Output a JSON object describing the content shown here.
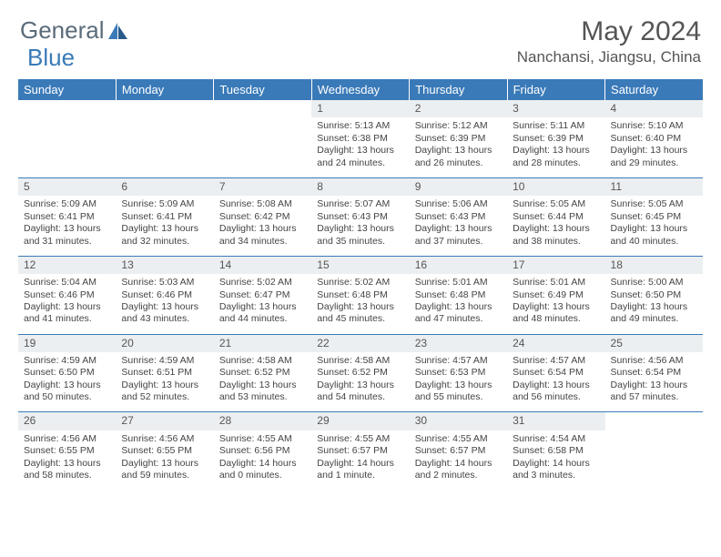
{
  "logo": {
    "part1": "General",
    "part2": "Blue"
  },
  "title": "May 2024",
  "location": "Nanchansi, Jiangsu, China",
  "colors": {
    "header_bg": "#3a7ab8",
    "header_text": "#ffffff",
    "daynum_bg": "#eceff1",
    "border": "#3a7ab8",
    "body_text": "#444444",
    "title_text": "#555555"
  },
  "weekdays": [
    "Sunday",
    "Monday",
    "Tuesday",
    "Wednesday",
    "Thursday",
    "Friday",
    "Saturday"
  ],
  "weeks": [
    [
      null,
      null,
      null,
      {
        "n": "1",
        "sr": "5:13 AM",
        "ss": "6:38 PM",
        "dl": "13 hours and 24 minutes."
      },
      {
        "n": "2",
        "sr": "5:12 AM",
        "ss": "6:39 PM",
        "dl": "13 hours and 26 minutes."
      },
      {
        "n": "3",
        "sr": "5:11 AM",
        "ss": "6:39 PM",
        "dl": "13 hours and 28 minutes."
      },
      {
        "n": "4",
        "sr": "5:10 AM",
        "ss": "6:40 PM",
        "dl": "13 hours and 29 minutes."
      }
    ],
    [
      {
        "n": "5",
        "sr": "5:09 AM",
        "ss": "6:41 PM",
        "dl": "13 hours and 31 minutes."
      },
      {
        "n": "6",
        "sr": "5:09 AM",
        "ss": "6:41 PM",
        "dl": "13 hours and 32 minutes."
      },
      {
        "n": "7",
        "sr": "5:08 AM",
        "ss": "6:42 PM",
        "dl": "13 hours and 34 minutes."
      },
      {
        "n": "8",
        "sr": "5:07 AM",
        "ss": "6:43 PM",
        "dl": "13 hours and 35 minutes."
      },
      {
        "n": "9",
        "sr": "5:06 AM",
        "ss": "6:43 PM",
        "dl": "13 hours and 37 minutes."
      },
      {
        "n": "10",
        "sr": "5:05 AM",
        "ss": "6:44 PM",
        "dl": "13 hours and 38 minutes."
      },
      {
        "n": "11",
        "sr": "5:05 AM",
        "ss": "6:45 PM",
        "dl": "13 hours and 40 minutes."
      }
    ],
    [
      {
        "n": "12",
        "sr": "5:04 AM",
        "ss": "6:46 PM",
        "dl": "13 hours and 41 minutes."
      },
      {
        "n": "13",
        "sr": "5:03 AM",
        "ss": "6:46 PM",
        "dl": "13 hours and 43 minutes."
      },
      {
        "n": "14",
        "sr": "5:02 AM",
        "ss": "6:47 PM",
        "dl": "13 hours and 44 minutes."
      },
      {
        "n": "15",
        "sr": "5:02 AM",
        "ss": "6:48 PM",
        "dl": "13 hours and 45 minutes."
      },
      {
        "n": "16",
        "sr": "5:01 AM",
        "ss": "6:48 PM",
        "dl": "13 hours and 47 minutes."
      },
      {
        "n": "17",
        "sr": "5:01 AM",
        "ss": "6:49 PM",
        "dl": "13 hours and 48 minutes."
      },
      {
        "n": "18",
        "sr": "5:00 AM",
        "ss": "6:50 PM",
        "dl": "13 hours and 49 minutes."
      }
    ],
    [
      {
        "n": "19",
        "sr": "4:59 AM",
        "ss": "6:50 PM",
        "dl": "13 hours and 50 minutes."
      },
      {
        "n": "20",
        "sr": "4:59 AM",
        "ss": "6:51 PM",
        "dl": "13 hours and 52 minutes."
      },
      {
        "n": "21",
        "sr": "4:58 AM",
        "ss": "6:52 PM",
        "dl": "13 hours and 53 minutes."
      },
      {
        "n": "22",
        "sr": "4:58 AM",
        "ss": "6:52 PM",
        "dl": "13 hours and 54 minutes."
      },
      {
        "n": "23",
        "sr": "4:57 AM",
        "ss": "6:53 PM",
        "dl": "13 hours and 55 minutes."
      },
      {
        "n": "24",
        "sr": "4:57 AM",
        "ss": "6:54 PM",
        "dl": "13 hours and 56 minutes."
      },
      {
        "n": "25",
        "sr": "4:56 AM",
        "ss": "6:54 PM",
        "dl": "13 hours and 57 minutes."
      }
    ],
    [
      {
        "n": "26",
        "sr": "4:56 AM",
        "ss": "6:55 PM",
        "dl": "13 hours and 58 minutes."
      },
      {
        "n": "27",
        "sr": "4:56 AM",
        "ss": "6:55 PM",
        "dl": "13 hours and 59 minutes."
      },
      {
        "n": "28",
        "sr": "4:55 AM",
        "ss": "6:56 PM",
        "dl": "14 hours and 0 minutes."
      },
      {
        "n": "29",
        "sr": "4:55 AM",
        "ss": "6:57 PM",
        "dl": "14 hours and 1 minute."
      },
      {
        "n": "30",
        "sr": "4:55 AM",
        "ss": "6:57 PM",
        "dl": "14 hours and 2 minutes."
      },
      {
        "n": "31",
        "sr": "4:54 AM",
        "ss": "6:58 PM",
        "dl": "14 hours and 3 minutes."
      },
      null
    ]
  ],
  "labels": {
    "sunrise": "Sunrise: ",
    "sunset": "Sunset: ",
    "daylight": "Daylight: "
  }
}
